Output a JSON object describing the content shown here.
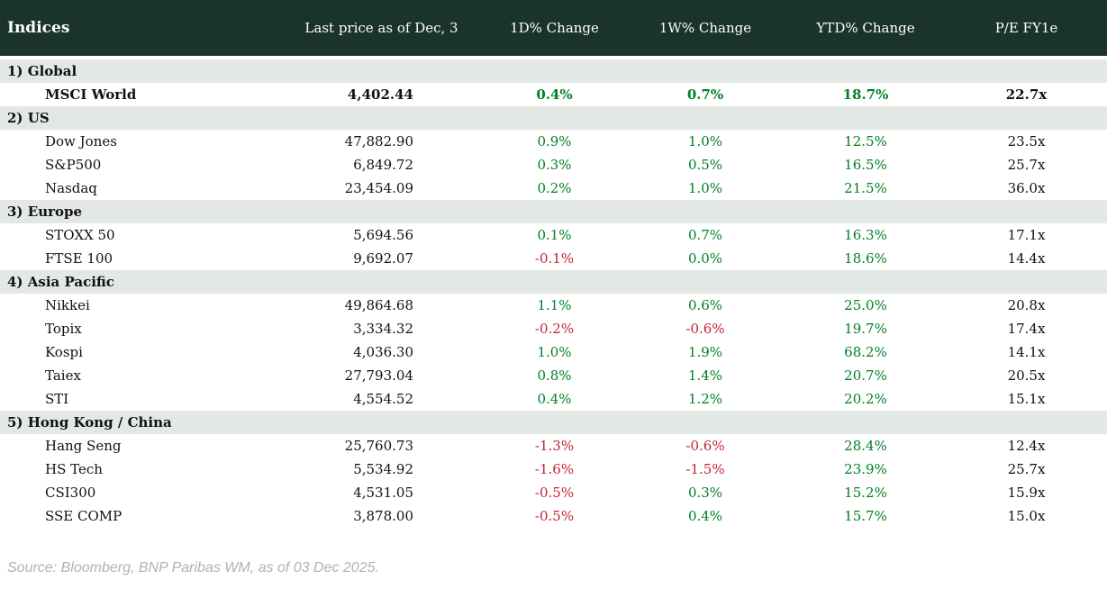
{
  "colors": {
    "header_bg": "#1a332d",
    "section_bg": "#e3e8e4",
    "positive": "#008125",
    "negative": "#c42333",
    "footer_text": "#a9b3bb"
  },
  "table": {
    "title": "Indices",
    "columns": [
      "Last price as of Dec, 3",
      "1D% Change",
      "1W% Change",
      "YTD% Change",
      "P/E FY1e"
    ],
    "sections": [
      {
        "label": "1) Global",
        "rows": [
          {
            "name": "MSCI World",
            "bold": true,
            "price": "4,402.44",
            "chg_1d": "0.4%",
            "chg_1w": "0.7%",
            "chg_ytd": "18.7%",
            "pe": "22.7x"
          }
        ]
      },
      {
        "label": "2) US",
        "rows": [
          {
            "name": "Dow Jones",
            "price": "47,882.90",
            "chg_1d": "0.9%",
            "chg_1w": "1.0%",
            "chg_ytd": "12.5%",
            "pe": "23.5x"
          },
          {
            "name": "S&P500",
            "price": "6,849.72",
            "chg_1d": "0.3%",
            "chg_1w": "0.5%",
            "chg_ytd": "16.5%",
            "pe": "25.7x"
          },
          {
            "name": "Nasdaq",
            "price": "23,454.09",
            "chg_1d": "0.2%",
            "chg_1w": "1.0%",
            "chg_ytd": "21.5%",
            "pe": "36.0x"
          }
        ]
      },
      {
        "label": "3) Europe",
        "rows": [
          {
            "name": "STOXX 50",
            "price": "5,694.56",
            "chg_1d": "0.1%",
            "chg_1w": "0.7%",
            "chg_ytd": "16.3%",
            "pe": "17.1x"
          },
          {
            "name": "FTSE 100",
            "price": "9,692.07",
            "chg_1d": "-0.1%",
            "chg_1w": "0.0%",
            "chg_ytd": "18.6%",
            "pe": "14.4x"
          }
        ]
      },
      {
        "label": "4) Asia Pacific",
        "rows": [
          {
            "name": "Nikkei",
            "price": "49,864.68",
            "chg_1d": "1.1%",
            "chg_1w": "0.6%",
            "chg_ytd": "25.0%",
            "pe": "20.8x"
          },
          {
            "name": "Topix",
            "price": "3,334.32",
            "chg_1d": "-0.2%",
            "chg_1w": "-0.6%",
            "chg_ytd": "19.7%",
            "pe": "17.4x"
          },
          {
            "name": "Kospi",
            "price": "4,036.30",
            "chg_1d": "1.0%",
            "chg_1w": "1.9%",
            "chg_ytd": "68.2%",
            "pe": "14.1x"
          },
          {
            "name": "Taiex",
            "price": "27,793.04",
            "chg_1d": "0.8%",
            "chg_1w": "1.4%",
            "chg_ytd": "20.7%",
            "pe": "20.5x"
          },
          {
            "name": "STI",
            "price": "4,554.52",
            "chg_1d": "0.4%",
            "chg_1w": "1.2%",
            "chg_ytd": "20.2%",
            "pe": "15.1x"
          }
        ]
      },
      {
        "label": "5) Hong Kong / China",
        "rows": [
          {
            "name": "Hang Seng",
            "price": "25,760.73",
            "chg_1d": "-1.3%",
            "chg_1w": "-0.6%",
            "chg_ytd": "28.4%",
            "pe": "12.4x"
          },
          {
            "name": "HS Tech",
            "price": "5,534.92",
            "chg_1d": "-1.6%",
            "chg_1w": "-1.5%",
            "chg_ytd": "23.9%",
            "pe": "25.7x"
          },
          {
            "name": "CSI300",
            "price": "4,531.05",
            "chg_1d": "-0.5%",
            "chg_1w": "0.3%",
            "chg_ytd": "15.2%",
            "pe": "15.9x"
          },
          {
            "name": "SSE COMP",
            "price": "3,878.00",
            "chg_1d": "-0.5%",
            "chg_1w": "0.4%",
            "chg_ytd": "15.7%",
            "pe": "15.0x"
          }
        ]
      }
    ]
  },
  "footer": {
    "source": "Source: Bloomberg, BNP Paribas WM, as of 03 Dec 2025."
  },
  "chart_data": {
    "type": "table",
    "title": "Indices",
    "columns": [
      "Indices",
      "Last price as of Dec, 3",
      "1D% Change",
      "1W% Change",
      "YTD% Change",
      "P/E FY1e"
    ],
    "rows": [
      [
        "1) Global",
        null,
        null,
        null,
        null,
        null
      ],
      [
        "MSCI World",
        4402.44,
        0.4,
        0.7,
        18.7,
        22.7
      ],
      [
        "2) US",
        null,
        null,
        null,
        null,
        null
      ],
      [
        "Dow Jones",
        47882.9,
        0.9,
        1.0,
        12.5,
        23.5
      ],
      [
        "S&P500",
        6849.72,
        0.3,
        0.5,
        16.5,
        25.7
      ],
      [
        "Nasdaq",
        23454.09,
        0.2,
        1.0,
        21.5,
        36.0
      ],
      [
        "3) Europe",
        null,
        null,
        null,
        null,
        null
      ],
      [
        "STOXX 50",
        5694.56,
        0.1,
        0.7,
        16.3,
        17.1
      ],
      [
        "FTSE 100",
        9692.07,
        -0.1,
        0.0,
        18.6,
        14.4
      ],
      [
        "4) Asia Pacific",
        null,
        null,
        null,
        null,
        null
      ],
      [
        "Nikkei",
        49864.68,
        1.1,
        0.6,
        25.0,
        20.8
      ],
      [
        "Topix",
        3334.32,
        -0.2,
        -0.6,
        19.7,
        17.4
      ],
      [
        "Kospi",
        4036.3,
        1.0,
        1.9,
        68.2,
        14.1
      ],
      [
        "Taiex",
        27793.04,
        0.8,
        1.4,
        20.7,
        20.5
      ],
      [
        "STI",
        4554.52,
        0.4,
        1.2,
        20.2,
        15.1
      ],
      [
        "5) Hong Kong / China",
        null,
        null,
        null,
        null,
        null
      ],
      [
        "Hang Seng",
        25760.73,
        -1.3,
        -0.6,
        28.4,
        12.4
      ],
      [
        "HS Tech",
        5534.92,
        -1.6,
        -1.5,
        23.9,
        25.7
      ],
      [
        "CSI300",
        4531.05,
        -0.5,
        0.3,
        15.2,
        15.9
      ],
      [
        "SSE COMP",
        3878.0,
        -0.5,
        0.4,
        15.7,
        15.0
      ]
    ],
    "notes": "Percent change cells are green when >= 0, red when negative. Units: price = index points, changes = %, P/E = multiple (x)."
  }
}
